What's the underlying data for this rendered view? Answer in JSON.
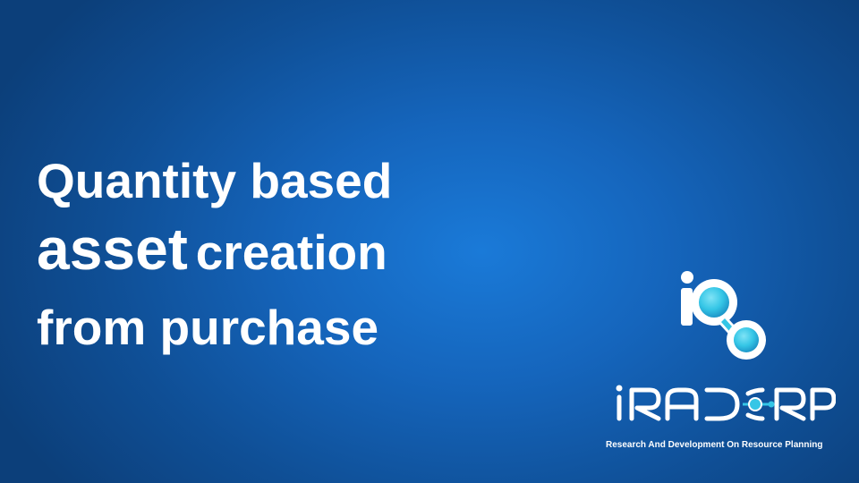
{
  "slide": {
    "title_line_1": "Quantity based",
    "title_line_2_big": "asset",
    "title_line_2_small": "creation",
    "title_line_3": "from purchase"
  },
  "logo": {
    "wordmark_text": "iRADORP",
    "tagline": "Research And Development On Resource Planning",
    "accent_color": "#35c6e6"
  },
  "colors": {
    "background_center": "#1a7ad8",
    "background_edge": "#0c3f7a",
    "text": "#ffffff"
  }
}
